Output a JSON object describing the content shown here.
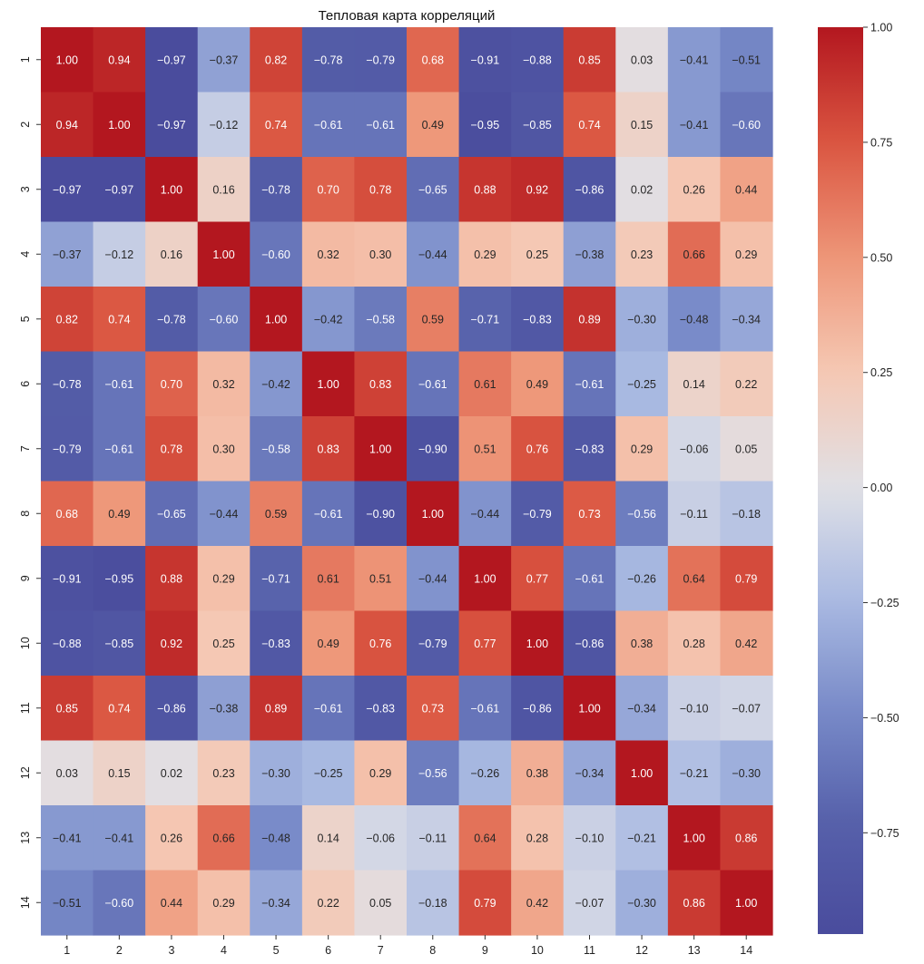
{
  "chart_data": {
    "type": "heatmap",
    "title": "Тепловая карта корреляций",
    "xlabel": "",
    "ylabel": "",
    "x_categories": [
      "1",
      "2",
      "3",
      "4",
      "5",
      "6",
      "7",
      "8",
      "9",
      "10",
      "11",
      "12",
      "13",
      "14"
    ],
    "y_categories": [
      "1",
      "2",
      "3",
      "4",
      "5",
      "6",
      "7",
      "8",
      "9",
      "10",
      "11",
      "12",
      "13",
      "14"
    ],
    "values": [
      [
        1.0,
        0.94,
        -0.97,
        -0.37,
        0.82,
        -0.78,
        -0.79,
        0.68,
        -0.91,
        -0.88,
        0.85,
        0.03,
        -0.41,
        -0.51
      ],
      [
        0.94,
        1.0,
        -0.97,
        -0.12,
        0.74,
        -0.61,
        -0.61,
        0.49,
        -0.95,
        -0.85,
        0.74,
        0.15,
        -0.41,
        -0.6
      ],
      [
        -0.97,
        -0.97,
        1.0,
        0.16,
        -0.78,
        0.7,
        0.78,
        -0.65,
        0.88,
        0.92,
        -0.86,
        0.02,
        0.26,
        0.44
      ],
      [
        -0.37,
        -0.12,
        0.16,
        1.0,
        -0.6,
        0.32,
        0.3,
        -0.44,
        0.29,
        0.25,
        -0.38,
        0.23,
        0.66,
        0.29
      ],
      [
        0.82,
        0.74,
        -0.78,
        -0.6,
        1.0,
        -0.42,
        -0.58,
        0.59,
        -0.71,
        -0.83,
        0.89,
        -0.3,
        -0.48,
        -0.34
      ],
      [
        -0.78,
        -0.61,
        0.7,
        0.32,
        -0.42,
        1.0,
        0.83,
        -0.61,
        0.61,
        0.49,
        -0.61,
        -0.25,
        0.14,
        0.22
      ],
      [
        -0.79,
        -0.61,
        0.78,
        0.3,
        -0.58,
        0.83,
        1.0,
        -0.9,
        0.51,
        0.76,
        -0.83,
        0.29,
        -0.06,
        0.05
      ],
      [
        0.68,
        0.49,
        -0.65,
        -0.44,
        0.59,
        -0.61,
        -0.9,
        1.0,
        -0.44,
        -0.79,
        0.73,
        -0.56,
        -0.11,
        -0.18
      ],
      [
        -0.91,
        -0.95,
        0.88,
        0.29,
        -0.71,
        0.61,
        0.51,
        -0.44,
        1.0,
        0.77,
        -0.61,
        -0.26,
        0.64,
        0.79
      ],
      [
        -0.88,
        -0.85,
        0.92,
        0.25,
        -0.83,
        0.49,
        0.76,
        -0.79,
        0.77,
        1.0,
        -0.86,
        0.38,
        0.28,
        0.42
      ],
      [
        0.85,
        0.74,
        -0.86,
        -0.38,
        0.89,
        -0.61,
        -0.83,
        0.73,
        -0.61,
        -0.86,
        1.0,
        -0.34,
        -0.1,
        -0.07
      ],
      [
        0.03,
        0.15,
        0.02,
        0.23,
        -0.3,
        -0.25,
        0.29,
        -0.56,
        -0.26,
        0.38,
        -0.34,
        1.0,
        -0.21,
        -0.3
      ],
      [
        -0.41,
        -0.41,
        0.26,
        0.66,
        -0.48,
        0.14,
        -0.06,
        -0.11,
        0.64,
        0.28,
        -0.1,
        -0.21,
        1.0,
        0.86
      ],
      [
        -0.51,
        -0.6,
        0.44,
        0.29,
        -0.34,
        0.22,
        0.05,
        -0.18,
        0.79,
        0.42,
        -0.07,
        -0.3,
        0.86,
        1.0
      ]
    ],
    "annotation_format": "0.00",
    "colormap": "coolwarm",
    "vmin": -0.97,
    "vmax": 1.0,
    "colorbar": {
      "ticks": [
        1.0,
        0.75,
        0.5,
        0.25,
        0.0,
        -0.25,
        -0.5,
        -0.75
      ],
      "tick_labels": [
        "1.00",
        "0.75",
        "0.50",
        "0.25",
        "0.00",
        "−0.25",
        "−0.50",
        "−0.75"
      ],
      "placement": "right"
    },
    "colors": {
      "min": "#4a4c9d",
      "mid": "#e4e2e2",
      "max": "#b3171f"
    }
  }
}
